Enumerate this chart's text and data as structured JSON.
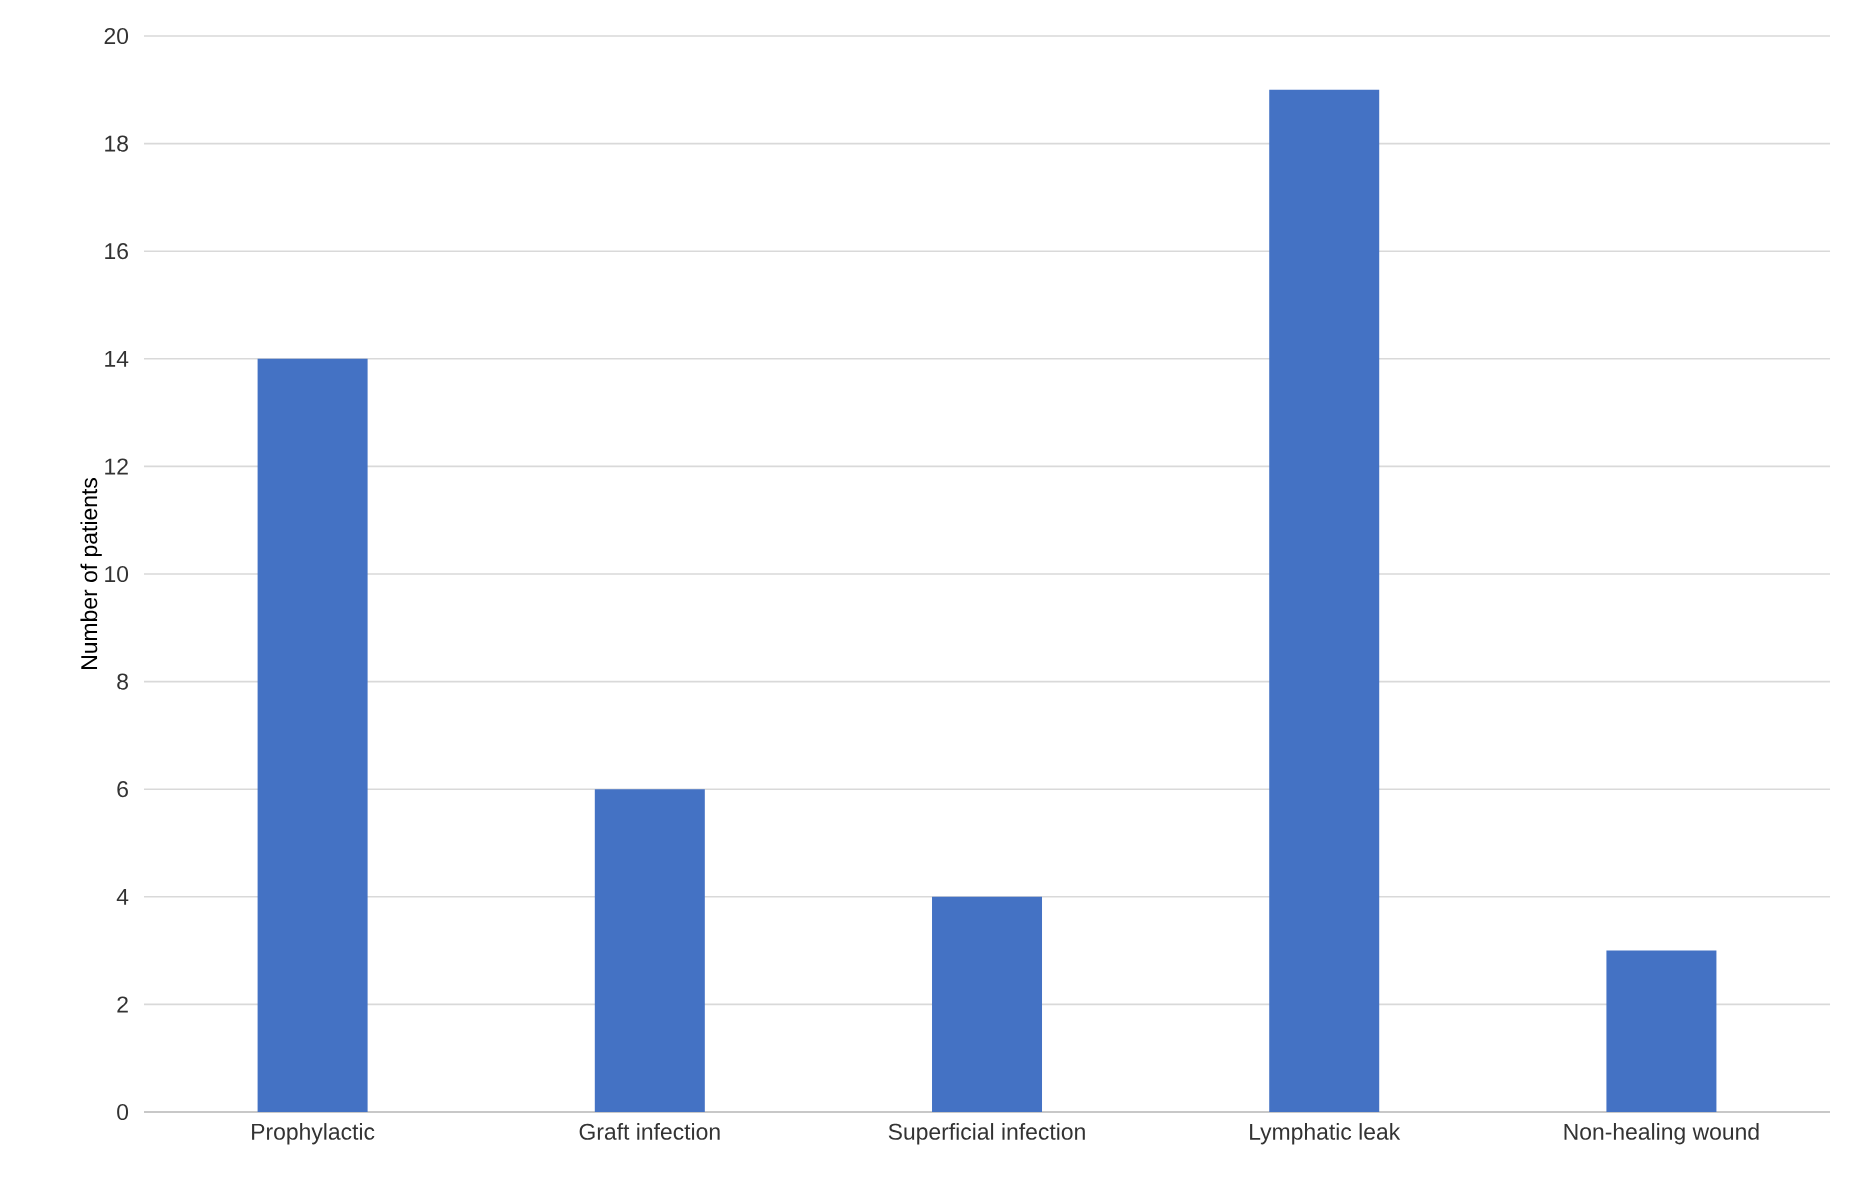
{
  "chart_data": {
    "type": "bar",
    "ylabel": "Number of patients",
    "categories": [
      "Prophylactic",
      "Graft infection",
      "Superficial infection",
      "Lymphatic leak",
      "Non-healing wound"
    ],
    "values": [
      14,
      6,
      4,
      19,
      3
    ],
    "color": "#4472c4",
    "ylim": [
      0,
      20
    ],
    "yticks": [
      0,
      2,
      4,
      6,
      8,
      10,
      12,
      14,
      16,
      18,
      20
    ],
    "grid": "y"
  }
}
